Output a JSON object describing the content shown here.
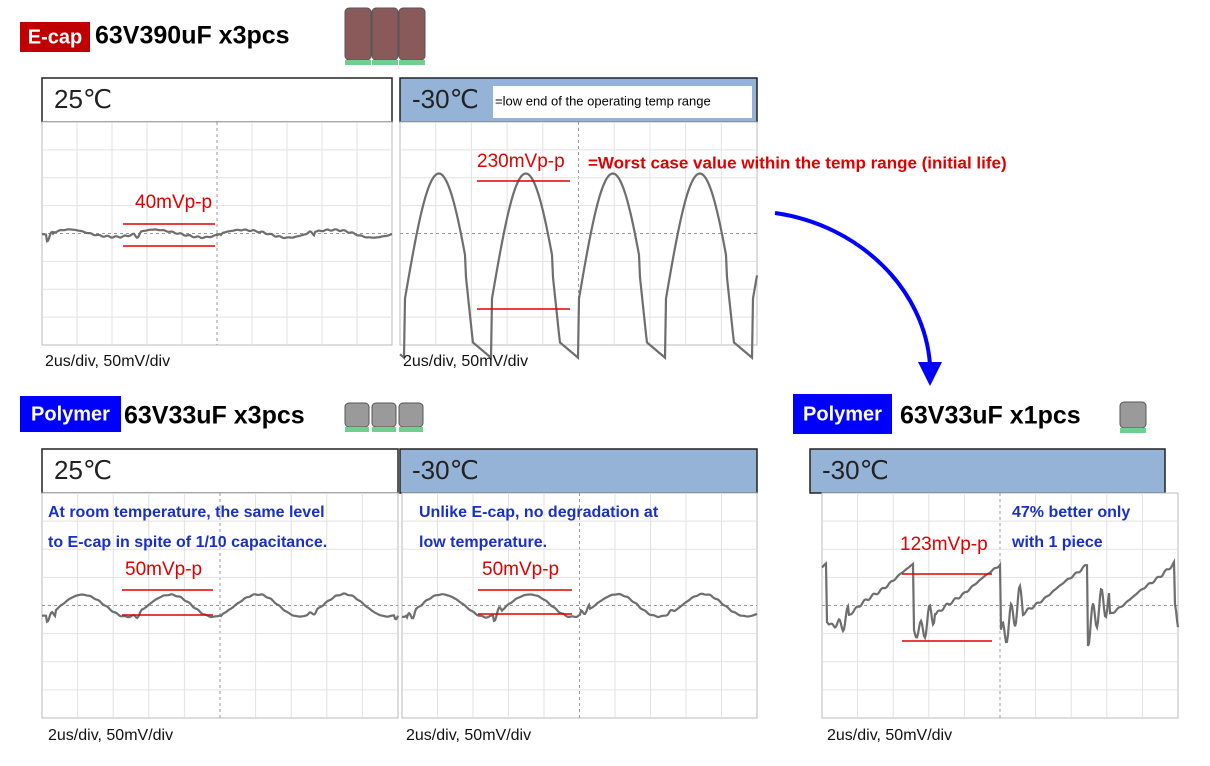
{
  "groups": [
    {
      "tag": "E-cap",
      "title": "63V390uF x3pcs"
    },
    {
      "tag": "Polymer",
      "title": "63V33uF x3pcs"
    },
    {
      "tag": "Polymer",
      "title": "63V33uF x1pcs"
    }
  ],
  "panels": [
    {
      "temp": "25℃",
      "measurement": "40mVp-p",
      "scale": "2us/div, 50mV/div"
    },
    {
      "temp": "-30℃",
      "note": "=low end of the operating temp range",
      "measurement": "230mVp-p",
      "annotation": "=Worst case value within the temp range (initial life)",
      "scale": "2us/div, 50mV/div"
    },
    {
      "temp": "25℃",
      "comment": [
        "At room temperature, the same level",
        "to E-cap in spite of 1/10 capacitance."
      ],
      "measurement": "50mVp-p",
      "scale": "2us/div, 50mV/div"
    },
    {
      "temp": "-30℃",
      "comment": [
        "Unlike E-cap, no degradation at",
        "low temperature."
      ],
      "measurement": "50mVp-p",
      "scale": "2us/div, 50mV/div"
    },
    {
      "temp": "-30℃",
      "comment": [
        "47% better only",
        "with 1 piece"
      ],
      "measurement": "123mVp-p",
      "scale": "2us/div, 50mV/div"
    }
  ]
}
